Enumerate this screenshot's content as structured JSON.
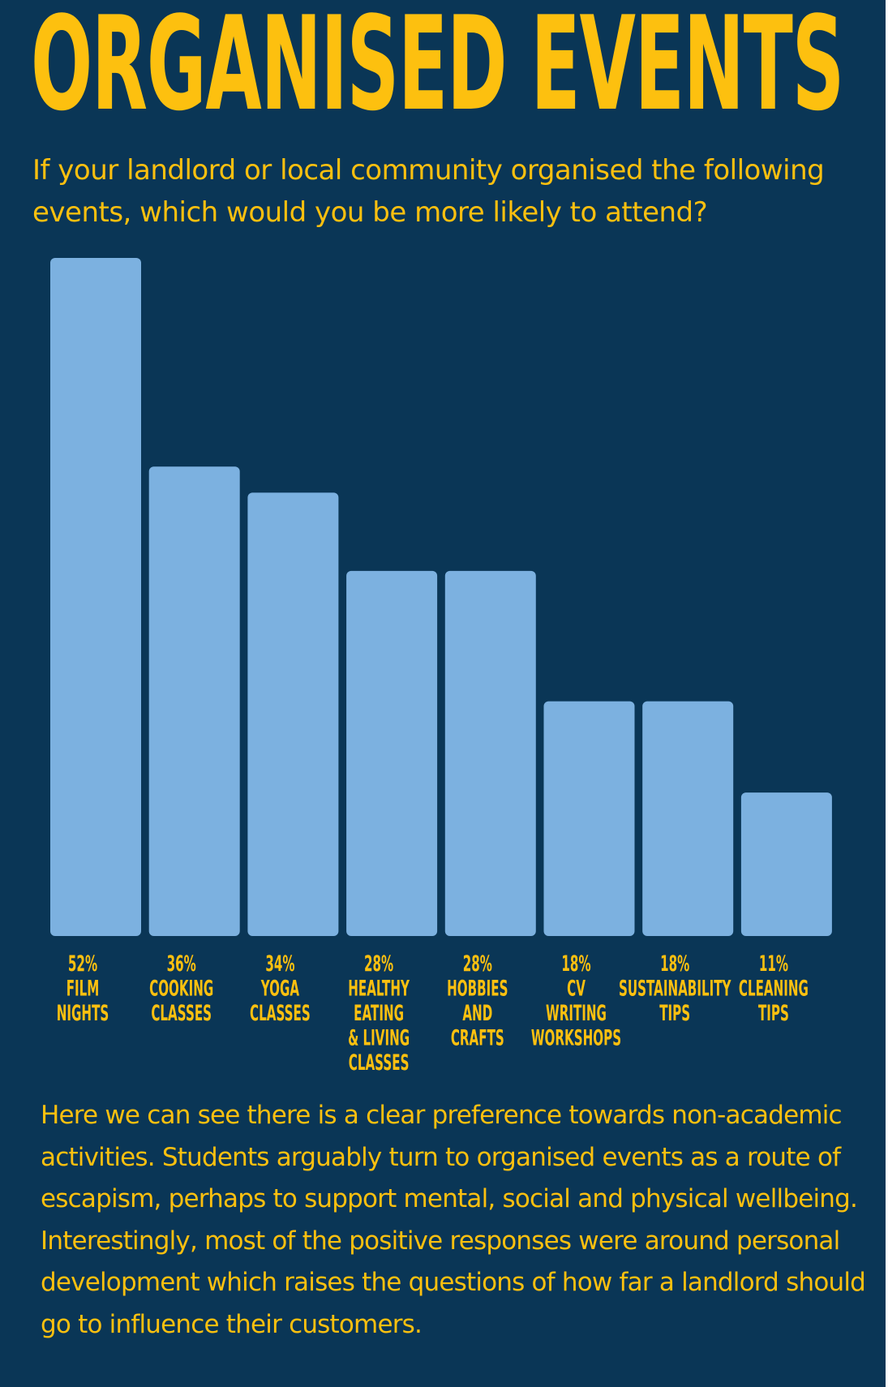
{
  "header": {
    "title": "ORGANISED EVENTS",
    "subtitle": "If your landlord or local community organised the following events, which would you be more likely to attend?"
  },
  "chart_data": {
    "type": "bar",
    "title": "ORGANISED EVENTS",
    "xlabel": "",
    "ylabel": "",
    "ylim": [
      0,
      52
    ],
    "grid": false,
    "categories": [
      "FILM NIGHTS",
      "COOKING CLASSES",
      "YOGA CLASSES",
      "HEALTHY EATING & LIVING CLASSES",
      "HOBBIES AND CRAFTS",
      "CV WRITING WORKSHOPS",
      "SUSTAINABILITY TIPS",
      "CLEANING TIPS"
    ],
    "category_lines": [
      [
        "FILM",
        "NIGHTS"
      ],
      [
        "COOKING",
        "CLASSES"
      ],
      [
        "YOGA",
        "CLASSES"
      ],
      [
        "HEALTHY",
        "EATING",
        "& LIVING",
        "CLASSES"
      ],
      [
        "HOBBIES",
        "AND",
        "CRAFTS"
      ],
      [
        "CV",
        "WRITING",
        "WORKSHOPS"
      ],
      [
        "SUSTAINABILITY",
        "TIPS"
      ],
      [
        "CLEANING",
        "TIPS"
      ]
    ],
    "values": [
      52,
      36,
      34,
      28,
      28,
      18,
      18,
      11
    ],
    "value_labels": [
      "52%",
      "36%",
      "34%",
      "28%",
      "28%",
      "18%",
      "18%",
      "11%"
    ],
    "colors": {
      "bar": "#7cb1e0",
      "text": "#fdc00f",
      "background": "#0a3656"
    }
  },
  "commentary": {
    "text": "Here we can see there is a clear preference towards non-academic activities. Students arguably turn to organised events as a route of escapism, perhaps to support mental, social and physical wellbeing. Interestingly, most of the positive responses were around personal development which raises the questions of how far a landlord should go to influence their customers."
  }
}
